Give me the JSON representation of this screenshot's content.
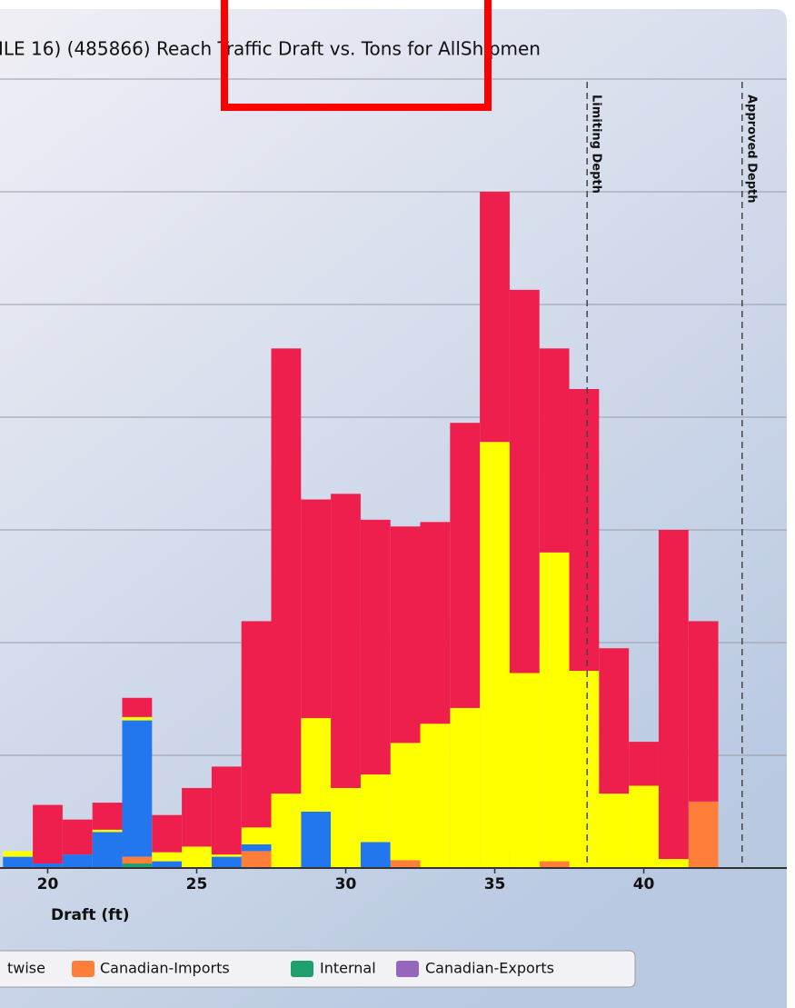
{
  "chart_data": {
    "type": "histogram",
    "title": "ILE 16) (485866) Reach Traffic Draft vs. Tons for AllShipmen",
    "x_label": "Draft (ft)",
    "bins": [
      18.5,
      19.5,
      20.5,
      21.5,
      22.5,
      23.5,
      24.5,
      25.5,
      26.5,
      27.5,
      28.5,
      29.5,
      30.5,
      31.5,
      32.5,
      33.5,
      34.5,
      35.5,
      36.5,
      37.5,
      38.5,
      39.5,
      40.5,
      41.5,
      42.5
    ],
    "xlim": [
      18.4,
      44.8
    ],
    "xticks": [
      20,
      25,
      30,
      35,
      40
    ],
    "ylim": [
      0,
      7
    ],
    "yticks": [
      0,
      1,
      2,
      3,
      4,
      5,
      6,
      7
    ],
    "grid": true,
    "stacked": true,
    "series": [
      {
        "name": "Internal",
        "color": "#1f9e6e",
        "values": [
          0,
          0,
          0,
          0,
          0.04,
          0,
          0,
          0,
          0,
          0,
          0,
          0,
          0,
          0,
          0,
          0,
          0,
          0,
          0,
          0,
          0,
          0,
          0,
          0
        ]
      },
      {
        "name": "Canadian-Imports",
        "color": "#ff7f3a",
        "values": [
          0,
          0,
          0,
          0,
          0.06,
          0,
          0,
          0,
          0.15,
          0,
          0,
          0,
          0,
          0.07,
          0,
          0,
          0,
          0,
          0.06,
          0,
          0,
          0,
          0,
          0.59
        ]
      },
      {
        "name": "twise",
        "color": "#2277ee",
        "values": [
          0.1,
          0.04,
          0.12,
          0.32,
          1.21,
          0.06,
          0,
          0.1,
          0.06,
          0,
          0.5,
          0,
          0.23,
          0,
          0,
          0,
          0,
          0,
          0,
          0,
          0,
          0,
          0,
          0
        ]
      },
      {
        "color": "#ffff00",
        "values": [
          0.05,
          0,
          0,
          0.02,
          0.03,
          0.08,
          0.19,
          0.02,
          0.15,
          0.66,
          0.83,
          0.71,
          0.6,
          1.04,
          1.28,
          1.42,
          3.78,
          1.73,
          2.74,
          1.75,
          0.66,
          0.73,
          0.08,
          0
        ]
      },
      {
        "color": "#ee1f4d",
        "values": [
          0,
          0.52,
          0.31,
          0.24,
          0.17,
          0.33,
          0.52,
          0.78,
          1.83,
          3.95,
          1.94,
          2.61,
          2.26,
          1.92,
          1.79,
          2.53,
          2.22,
          3.4,
          1.81,
          2.5,
          1.29,
          0.39,
          2.92,
          1.6
        ]
      },
      {
        "name": "Canadian-Exports",
        "color": "#9467bd",
        "values": [
          0,
          0,
          0,
          0,
          0,
          0,
          0,
          0,
          0,
          0,
          0,
          0,
          0,
          0,
          0,
          0,
          0,
          0,
          0,
          0,
          0,
          0,
          0,
          0
        ]
      }
    ],
    "annotations": [
      {
        "label": "Limiting Depth",
        "x": 38.1
      },
      {
        "label": "Approved Depth",
        "x": 43.3
      }
    ]
  }
}
